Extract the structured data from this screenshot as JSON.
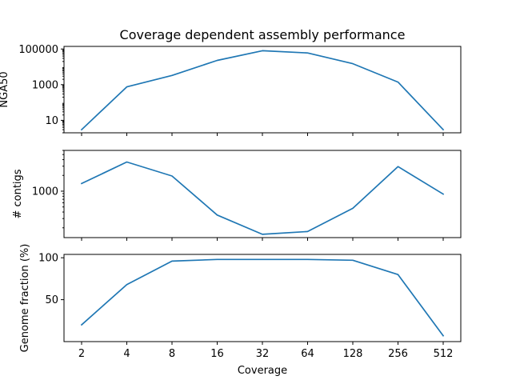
{
  "chart_data": {
    "type": "line",
    "title": "Coverage dependent assembly performance",
    "xlabel": "Coverage",
    "categories": [
      "2",
      "4",
      "8",
      "16",
      "32",
      "64",
      "128",
      "256",
      "512"
    ],
    "x": [
      2,
      4,
      8,
      16,
      32,
      64,
      128,
      256,
      512
    ],
    "xscale": "log2",
    "line_color": "#1f77b4",
    "grid": false,
    "legend": "none",
    "subplots": [
      {
        "ylabel": "NGA50",
        "yscale": "log",
        "ylim": [
          2,
          140000
        ],
        "yticks": [
          10,
          1000,
          100000
        ],
        "ytick_labels": [
          "10",
          "1000",
          "100000"
        ],
        "values": [
          3,
          750,
          3300,
          23000,
          80000,
          60000,
          15000,
          1400,
          3
        ]
      },
      {
        "ylabel": "# contigs",
        "yscale": "log",
        "ylim": [
          130,
          6000
        ],
        "yticks": [
          1000
        ],
        "ytick_labels": [
          "1000"
        ],
        "values": [
          1400,
          3600,
          1950,
          350,
          150,
          170,
          470,
          2950,
          880
        ]
      },
      {
        "ylabel": "Genome fraction (%)",
        "yscale": "linear",
        "ylim": [
          0,
          104
        ],
        "yticks": [
          50,
          100
        ],
        "ytick_labels": [
          "50",
          "100"
        ],
        "values": [
          20,
          68,
          96,
          98,
          98,
          98,
          97,
          80,
          7
        ]
      }
    ]
  }
}
